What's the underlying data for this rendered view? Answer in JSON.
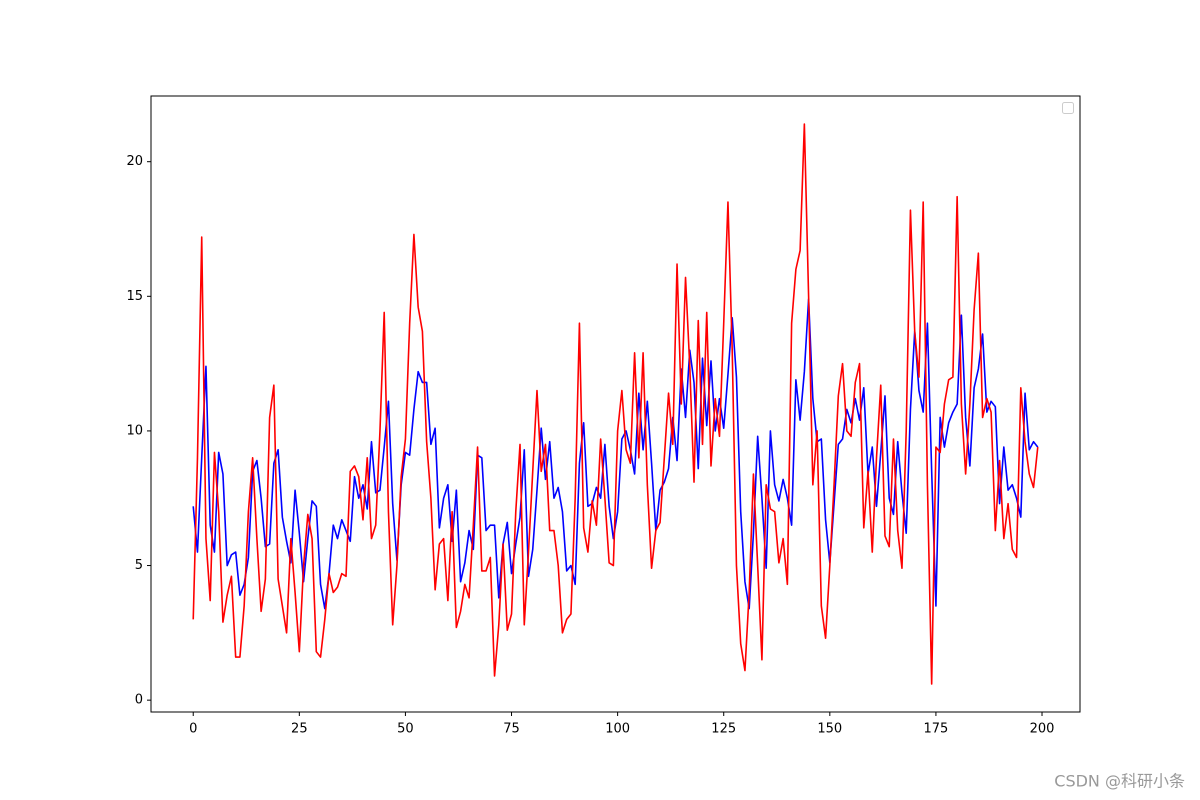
{
  "chart_data": {
    "type": "line",
    "x": [
      0,
      1,
      2,
      3,
      4,
      5,
      6,
      7,
      8,
      9,
      10,
      11,
      12,
      13,
      14,
      15,
      16,
      17,
      18,
      19,
      20,
      21,
      22,
      23,
      24,
      25,
      26,
      27,
      28,
      29,
      30,
      31,
      32,
      33,
      34,
      35,
      36,
      37,
      38,
      39,
      40,
      41,
      42,
      43,
      44,
      45,
      46,
      47,
      48,
      49,
      50,
      51,
      52,
      53,
      54,
      55,
      56,
      57,
      58,
      59,
      60,
      61,
      62,
      63,
      64,
      65,
      66,
      67,
      68,
      69,
      70,
      71,
      72,
      73,
      74,
      75,
      76,
      77,
      78,
      79,
      80,
      81,
      82,
      83,
      84,
      85,
      86,
      87,
      88,
      89,
      90,
      91,
      92,
      93,
      94,
      95,
      96,
      97,
      98,
      99,
      100,
      101,
      102,
      103,
      104,
      105,
      106,
      107,
      108,
      109,
      110,
      111,
      112,
      113,
      114,
      115,
      116,
      117,
      118,
      119,
      120,
      121,
      122,
      123,
      124,
      125,
      126,
      127,
      128,
      129,
      130,
      131,
      132,
      133,
      134,
      135,
      136,
      137,
      138,
      139,
      140,
      141,
      142,
      143,
      144,
      145,
      146,
      147,
      148,
      149,
      150,
      151,
      152,
      153,
      154,
      155,
      156,
      157,
      158,
      159,
      160,
      161,
      162,
      163,
      164,
      165,
      166,
      167,
      168,
      169,
      170,
      171,
      172,
      173,
      174,
      175,
      176,
      177,
      178,
      179,
      180,
      181,
      182,
      183,
      184,
      185,
      186,
      187,
      188,
      189,
      190,
      191,
      192,
      193,
      194,
      195,
      196,
      197,
      198,
      199
    ],
    "series": [
      {
        "color": "#0000ff",
        "values": [
          7.2,
          5.5,
          9,
          12.4,
          6.5,
          5.5,
          9.2,
          8.4,
          5,
          5.4,
          5.5,
          3.9,
          4.3,
          5.3,
          8.5,
          8.9,
          7.5,
          5.7,
          5.8,
          8.8,
          9.3,
          6.8,
          5.9,
          5.1,
          7.8,
          6.2,
          4.4,
          6,
          7.4,
          7.2,
          4.3,
          3.4,
          4.7,
          6.5,
          6,
          6.7,
          6.3,
          5.9,
          8.3,
          7.5,
          8,
          7.1,
          9.6,
          7.7,
          7.8,
          9.4,
          11.1,
          7.3,
          5.2,
          8,
          9.2,
          9.1,
          10.8,
          12.2,
          11.8,
          11.8,
          9.5,
          10.1,
          6.4,
          7.5,
          8,
          5.9,
          7.8,
          4.4,
          5.1,
          6.3,
          5.6,
          9.1,
          9,
          6.3,
          6.5,
          6.5,
          3.8,
          5.8,
          6.6,
          4.7,
          5.8,
          6.8,
          9.3,
          4.6,
          5.6,
          7.8,
          10.1,
          8.2,
          9.6,
          7.5,
          7.9,
          7,
          4.8,
          5,
          4.3,
          8.8,
          10.3,
          7.2,
          7.3,
          7.9,
          7.5,
          9.5,
          7.2,
          6,
          7,
          9.7,
          10,
          9.3,
          8.4,
          11.4,
          9.3,
          11.1,
          8.8,
          6.3,
          7.8,
          8.1,
          8.6,
          10.5,
          8.9,
          12.3,
          10.5,
          13,
          11.8,
          8.6,
          12.7,
          10.2,
          12.6,
          10,
          11.2,
          10.1,
          12.1,
          14.2,
          12,
          7,
          4.4,
          3.4,
          6.2,
          9.8,
          7.5,
          4.9,
          10,
          8,
          7.4,
          8.2,
          7.5,
          6.5,
          11.9,
          10.4,
          12.2,
          14.9,
          11.2,
          9.6,
          9.7,
          6.7,
          5.1,
          7.3,
          9.5,
          9.7,
          10.8,
          10.3,
          11.2,
          10.4,
          11.6,
          8.4,
          9.4,
          7.2,
          9.2,
          11.3,
          7.5,
          6.9,
          9.6,
          7.7,
          6.2,
          10.8,
          13.7,
          11.5,
          10.7,
          14,
          8.5,
          3.5,
          10.5,
          9.4,
          10.3,
          10.7,
          11,
          14.3,
          10.5,
          8.7,
          11.6,
          12.3,
          13.6,
          10.7,
          11.1,
          10.9,
          7.3,
          9.4,
          7.8,
          8,
          7.5,
          6.8,
          11.4,
          9.3,
          9.6,
          9.4
        ]
      },
      {
        "color": "#ff0000",
        "values": [
          3,
          9,
          17.2,
          6,
          3.7,
          9.2,
          7,
          2.9,
          3.9,
          4.6,
          1.6,
          1.6,
          3.5,
          7,
          9,
          6,
          3.3,
          4.5,
          10.5,
          11.7,
          4.5,
          3.5,
          2.5,
          6,
          4,
          1.8,
          5,
          6.9,
          6,
          1.8,
          1.6,
          3,
          4.7,
          4,
          4.2,
          4.7,
          4.6,
          8.5,
          8.7,
          8.3,
          6.7,
          9,
          6,
          6.5,
          10,
          14.4,
          7,
          2.8,
          5,
          8.3,
          9.7,
          14,
          17.3,
          14.6,
          13.7,
          9.6,
          7.5,
          4.1,
          5.8,
          6,
          3.7,
          7,
          2.7,
          3.3,
          4.3,
          3.8,
          6.5,
          9.4,
          4.8,
          4.8,
          5.3,
          0.9,
          2.8,
          5.8,
          2.6,
          3.2,
          7,
          9.5,
          2.8,
          5.5,
          8.5,
          11.5,
          8.5,
          9.5,
          6.3,
          6.3,
          5,
          2.5,
          3,
          3.2,
          7.5,
          14,
          6.4,
          5.5,
          7.4,
          6.5,
          9.7,
          7.5,
          5.1,
          5,
          10,
          11.5,
          9.3,
          8.8,
          12.9,
          9,
          12.9,
          8,
          4.9,
          6.3,
          6.6,
          9,
          11.4,
          9.5,
          16.2,
          11,
          15.7,
          12.4,
          8.1,
          14.1,
          9.5,
          14.4,
          8.7,
          11.2,
          9.8,
          14,
          18.5,
          13,
          5,
          2.1,
          1.1,
          4,
          8.4,
          5,
          1.5,
          8,
          7.1,
          7,
          5.1,
          6,
          4.3,
          14,
          16,
          16.7,
          21.4,
          15,
          8,
          10,
          3.5,
          2.3,
          5,
          8,
          11.3,
          12.5,
          10,
          9.8,
          11.8,
          12.5,
          6.4,
          8.5,
          5.5,
          9,
          11.7,
          6.1,
          5.7,
          9.7,
          6.3,
          4.9,
          10,
          18.2,
          13.7,
          12,
          18.5,
          8,
          0.6,
          9.4,
          9.2,
          11,
          11.9,
          12,
          18.7,
          11,
          8.4,
          11,
          14.5,
          16.6,
          10.5,
          11.2,
          10.7,
          6.3,
          8.9,
          6,
          7.3,
          5.6,
          5.3,
          11.6,
          9.6,
          8.4,
          7.9,
          9.4
        ]
      }
    ],
    "xlim": [
      -9.95,
      208.95
    ],
    "xticks": [
      0,
      25,
      50,
      75,
      100,
      125,
      150,
      175,
      200
    ],
    "ylim": [
      -0.44,
      22.44
    ],
    "yticks": [
      0,
      5,
      10,
      15,
      20
    ],
    "legend": "upper right"
  },
  "watermark": "CSDN @科研小条"
}
